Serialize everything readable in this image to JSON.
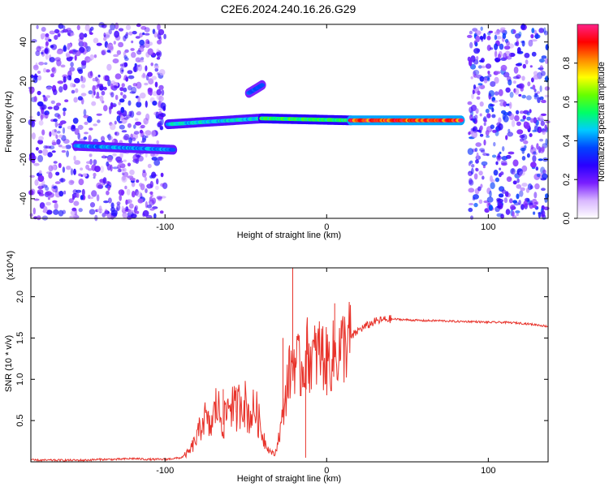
{
  "figure": {
    "title": "C2E6.2024.240.16.26.G29"
  },
  "chart_data": [
    {
      "type": "heatmap",
      "xlabel": "Height of straight line (km)",
      "ylabel": "Frequency (Hz)",
      "xlim": [
        -183,
        137
      ],
      "ylim": [
        -50,
        49
      ],
      "xticks": [
        -100,
        0,
        100
      ],
      "yticks": [
        -40,
        -20,
        0,
        20,
        40
      ],
      "colorbar": {
        "label": "Normalized spectral amplitude",
        "range": [
          0,
          1
        ],
        "ticks": [
          "0.0",
          "0.2",
          "0.4",
          "0.6",
          "0.8"
        ],
        "colormap": [
          "#ffffff",
          "#d9b8ff",
          "#7a1fff",
          "#2a00ff",
          "#0044ff",
          "#00ccff",
          "#00ff66",
          "#66ff00",
          "#ffff00",
          "#ff8800",
          "#ff0000",
          "#ff2288"
        ]
      },
      "regions": [
        {
          "name": "noise-left",
          "x": [
            -183,
            -100
          ],
          "y": [
            -50,
            49
          ],
          "level": 0.25
        },
        {
          "name": "noise-right",
          "x": [
            88,
            137
          ],
          "y": [
            -50,
            49
          ],
          "level": 0.3
        }
      ],
      "ridges": [
        {
          "x0": -155,
          "x1": -95,
          "f0": -13,
          "f1": -15,
          "level": 0.45
        },
        {
          "x0": -98,
          "x1": -40,
          "f0": -2,
          "f1": 1,
          "level": 0.5
        },
        {
          "x0": -40,
          "x1": 15,
          "f0": 1,
          "f1": 0,
          "level": 0.6
        },
        {
          "x0": 15,
          "x1": 83,
          "f0": 0,
          "f1": 0,
          "level": 0.95
        },
        {
          "x0": -48,
          "x1": -40,
          "f0": 14,
          "f1": 18,
          "level": 0.4
        }
      ]
    },
    {
      "type": "line",
      "xlabel": "Height of straight line (km)",
      "ylabel": "SNR (10 * v/v)",
      "yscale_label": "(x10^4)",
      "xlim": [
        -183,
        137
      ],
      "ylim": [
        0,
        2.35
      ],
      "xticks": [
        -100,
        0,
        100
      ],
      "yticks": [
        0.5,
        1.0,
        1.5,
        2.0
      ],
      "series": [
        {
          "color": "#e8332b",
          "x": [
            -183,
            -170,
            -160,
            -150,
            -140,
            -130,
            -120,
            -110,
            -100,
            -90,
            -85,
            -80,
            -76,
            -72,
            -68,
            -64,
            -60,
            -56,
            -52,
            -48,
            -44,
            -40,
            -36,
            -32,
            -28,
            -24,
            -20,
            -16,
            -12,
            -8,
            -4,
            0,
            5,
            10,
            15,
            20,
            25,
            30,
            35,
            40,
            50,
            60,
            70,
            80,
            90,
            100,
            110,
            120,
            130,
            137
          ],
          "y": [
            0.02,
            0.02,
            0.02,
            0.02,
            0.03,
            0.03,
            0.04,
            0.03,
            0.03,
            0.05,
            0.12,
            0.3,
            0.55,
            0.4,
            0.7,
            0.45,
            0.75,
            0.6,
            0.8,
            0.55,
            0.65,
            0.35,
            0.15,
            0.08,
            0.45,
            1.0,
            1.25,
            1.1,
            1.3,
            1.25,
            1.35,
            1.2,
            1.3,
            1.4,
            1.5,
            1.6,
            1.65,
            1.7,
            1.72,
            1.73,
            1.72,
            1.71,
            1.71,
            1.7,
            1.7,
            1.69,
            1.69,
            1.68,
            1.66,
            1.64
          ]
        }
      ],
      "spikes": [
        {
          "x": -21,
          "y": 2.35
        },
        {
          "x": 5,
          "y": 1.92
        },
        {
          "x": -12,
          "y": 1.75
        },
        {
          "x": -27,
          "y": 1.5
        },
        {
          "x": -64,
          "y": 0.88
        },
        {
          "x": -56,
          "y": 0.9
        },
        {
          "x": -13,
          "y": 0.05
        }
      ]
    }
  ]
}
